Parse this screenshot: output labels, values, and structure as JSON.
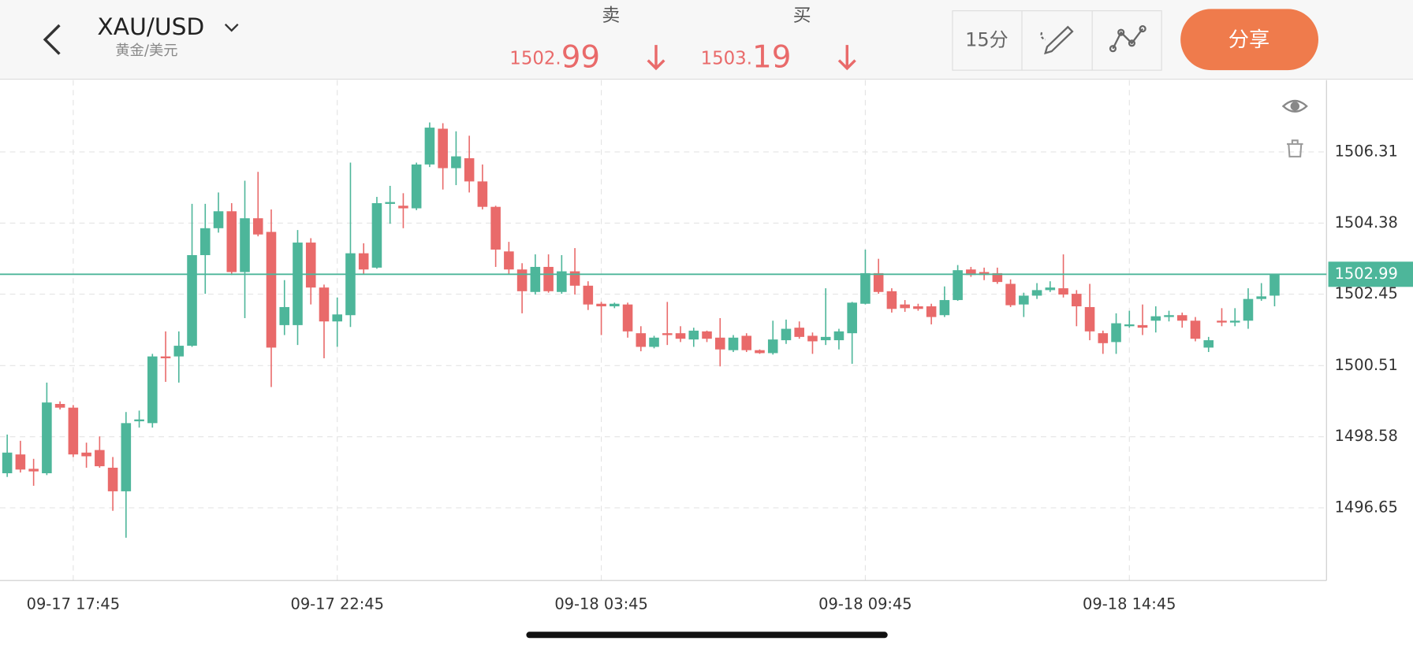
{
  "header": {
    "symbol": "XAU/USD",
    "name": "黄金/美元",
    "sell_label": "卖",
    "sell_price": "1502.99",
    "buy_label": "买",
    "buy_price": "1503.19",
    "timeframe": "15分",
    "share": "分享"
  },
  "chart_data": {
    "type": "candlestick",
    "categories": [
      null,
      null,
      null,
      null,
      null,
      "09-17 17:45",
      null,
      null,
      null,
      null,
      null,
      null,
      null,
      null,
      null,
      null,
      null,
      null,
      null,
      null,
      null,
      null,
      null,
      null,
      null,
      "09-17 22:45",
      null,
      null,
      null,
      null,
      null,
      null,
      null,
      null,
      null,
      null,
      null,
      null,
      null,
      null,
      null,
      null,
      null,
      null,
      null,
      "09-18 03:45",
      null,
      null,
      null,
      null,
      null,
      null,
      null,
      null,
      null,
      null,
      null,
      null,
      null,
      null,
      null,
      null,
      null,
      null,
      null,
      "09-18 09:45",
      null,
      null,
      null,
      null,
      null,
      null,
      null,
      null,
      null,
      null,
      null,
      null,
      null,
      null,
      null,
      null,
      null,
      null,
      null,
      "09-18 14:45",
      null,
      null,
      null,
      null,
      null,
      null,
      null,
      null,
      null,
      null,
      null
    ],
    "open": [
      1497.59,
      1498.1,
      1497.71,
      1497.59,
      1499.47,
      1499.37,
      1498.15,
      1498.22,
      1497.74,
      1497.1,
      1499.0,
      1498.95,
      1500.76,
      1500.76,
      1501.05,
      1503.51,
      1504.24,
      1504.7,
      1503.05,
      1504.51,
      1504.14,
      1501.61,
      1501.61,
      1503.85,
      1502.63,
      1501.71,
      1501.88,
      1503.56,
      1503.17,
      1504.9,
      1504.85,
      1504.78,
      1505.97,
      1506.94,
      1505.87,
      1506.14,
      1505.51,
      1504.82,
      1503.61,
      1503.12,
      1502.51,
      1503.19,
      1502.51,
      1503.07,
      1502.68,
      1502.19,
      1502.12,
      1502.17,
      1501.39,
      1501.02,
      1501.39,
      1501.39,
      1501.22,
      1501.44,
      1501.27,
      1500.93,
      1501.32,
      1500.93,
      1500.85,
      1501.2,
      1501.54,
      1501.32,
      1501.2,
      1501.2,
      1501.39,
      1502.19,
      1503.02,
      1502.53,
      1502.17,
      1502.12,
      1502.12,
      1501.88,
      1502.29,
      1503.12,
      1503.05,
      1503.02,
      1502.73,
      1502.17,
      1502.41,
      1502.56,
      1502.61,
      1502.46,
      1502.1,
      1501.39,
      1501.15,
      1501.58,
      1501.61,
      1501.73,
      1501.83,
      1501.88,
      1501.73,
      1501.0,
      1501.73,
      1501.68,
      1501.73,
      1502.32,
      1502.41
    ],
    "high": [
      1498.64,
      1498.47,
      1497.98,
      1500.05,
      1499.54,
      1499.44,
      1498.42,
      1498.59,
      1498.03,
      1499.25,
      1499.29,
      1500.83,
      1501.44,
      1501.44,
      1504.9,
      1504.9,
      1505.21,
      1504.92,
      1505.53,
      1505.77,
      1504.75,
      1502.83,
      1504.19,
      1503.97,
      1502.71,
      1502.36,
      1506.02,
      1503.83,
      1505.09,
      1505.39,
      1505.19,
      1506.02,
      1507.11,
      1507.09,
      1506.87,
      1506.75,
      1505.97,
      1504.85,
      1503.87,
      1503.29,
      1503.53,
      1503.53,
      1503.51,
      1503.7,
      1502.8,
      1502.24,
      1502.22,
      1502.22,
      1501.58,
      1501.32,
      1502.24,
      1501.58,
      1501.54,
      1501.46,
      1501.8,
      1501.34,
      1501.39,
      1500.95,
      1501.73,
      1501.76,
      1501.71,
      1501.41,
      1502.61,
      1501.51,
      1502.24,
      1503.66,
      1503.41,
      1502.61,
      1502.29,
      1502.19,
      1502.19,
      1502.66,
      1503.24,
      1503.19,
      1503.17,
      1503.17,
      1502.85,
      1502.49,
      1502.75,
      1502.8,
      1503.53,
      1502.56,
      1502.73,
      1501.46,
      1501.93,
      1502.0,
      1502.17,
      1502.12,
      1502.0,
      1501.95,
      1501.83,
      1501.29,
      1502.07,
      1502.07,
      1502.61,
      1502.75,
      1503.0
    ],
    "low": [
      1497.49,
      1497.61,
      1497.25,
      1497.54,
      1499.32,
      1498.03,
      1497.74,
      1497.74,
      1496.57,
      1495.84,
      1498.83,
      1498.83,
      1500.07,
      1500.05,
      1501.02,
      1502.46,
      1504.12,
      1502.97,
      1501.8,
      1504.02,
      1499.93,
      1501.34,
      1501.07,
      1502.17,
      1500.71,
      1501.02,
      1501.56,
      1503.0,
      1503.14,
      1504.36,
      1504.24,
      1504.73,
      1505.9,
      1505.29,
      1505.41,
      1505.21,
      1504.75,
      1503.19,
      1503.0,
      1501.93,
      1502.44,
      1502.49,
      1502.46,
      1502.44,
      1502.02,
      1501.34,
      1502.07,
      1501.27,
      1500.9,
      1500.98,
      1501.07,
      1501.15,
      1501.02,
      1501.15,
      1500.49,
      1500.88,
      1500.88,
      1500.83,
      1500.81,
      1501.1,
      1501.24,
      1500.83,
      1501.07,
      1500.95,
      1500.56,
      1502.17,
      1502.46,
      1501.95,
      1501.97,
      1502.0,
      1501.63,
      1501.83,
      1502.27,
      1502.92,
      1502.83,
      1502.73,
      1502.1,
      1501.83,
      1502.32,
      1502.51,
      1502.36,
      1501.58,
      1501.2,
      1500.83,
      1500.83,
      1501.54,
      1501.34,
      1501.41,
      1501.71,
      1501.54,
      1501.17,
      1500.88,
      1501.58,
      1501.58,
      1501.51,
      1502.27,
      1502.12
    ],
    "close": [
      1498.15,
      1497.69,
      1497.64,
      1499.51,
      1499.37,
      1498.1,
      1498.05,
      1497.78,
      1497.1,
      1498.95,
      1499.05,
      1500.76,
      1500.71,
      1501.05,
      1503.51,
      1504.24,
      1504.7,
      1503.05,
      1504.51,
      1504.07,
      1501.0,
      1502.1,
      1503.85,
      1502.63,
      1501.71,
      1501.9,
      1503.56,
      1503.12,
      1504.92,
      1504.95,
      1504.78,
      1505.97,
      1506.97,
      1505.87,
      1506.19,
      1505.51,
      1504.82,
      1503.66,
      1503.12,
      1502.53,
      1503.19,
      1502.53,
      1503.07,
      1502.68,
      1502.17,
      1502.12,
      1502.19,
      1501.44,
      1501.02,
      1501.27,
      1501.34,
      1501.24,
      1501.46,
      1501.24,
      1500.95,
      1501.27,
      1500.93,
      1500.85,
      1501.22,
      1501.51,
      1501.29,
      1501.17,
      1501.29,
      1501.44,
      1502.22,
      1503.02,
      1502.51,
      1502.05,
      1502.07,
      1502.05,
      1501.83,
      1502.29,
      1503.1,
      1502.97,
      1502.97,
      1502.78,
      1502.15,
      1502.41,
      1502.56,
      1502.63,
      1502.44,
      1502.12,
      1501.44,
      1501.12,
      1501.66,
      1501.63,
      1501.54,
      1501.85,
      1501.88,
      1501.73,
      1501.24,
      1501.2,
      1501.68,
      1501.73,
      1502.32,
      1502.39,
      1502.99
    ],
    "up_color": "#4db69a",
    "down_color": "#e96a6a",
    "ylim": [
      1494.68,
      1508.26
    ],
    "yticks": [
      1496.65,
      1498.58,
      1500.51,
      1502.45,
      1504.38,
      1506.31
    ],
    "grid": true,
    "last_price": 1502.99,
    "last_price_color": "#4db69a"
  }
}
